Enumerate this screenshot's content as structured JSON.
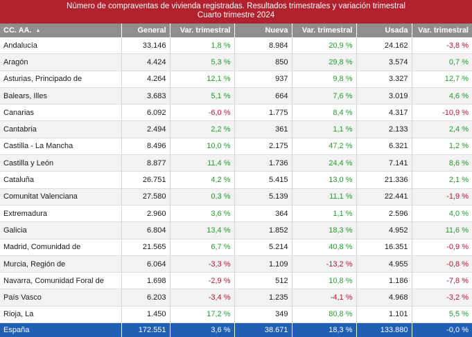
{
  "title": {
    "line1": "Número de compraventas de vivienda registradas. Resultados trimestrales  y variación trimestral",
    "line2": "Cuarto trimestre 2024"
  },
  "colors": {
    "header_bg": "#b2212e",
    "column_header_bg": "#8f8f8f",
    "total_bg": "#1f5fb4",
    "positive": "#1f9e2a",
    "negative": "#c0142a"
  },
  "columns": [
    "CC. AA.",
    "General",
    "Var. trimestral",
    "Nueva",
    "Var. trimestral",
    "Usada",
    "Var. trimestral"
  ],
  "sort_icon": "sort-ascending-icon",
  "rows": [
    [
      "Andalucía",
      "33.146",
      "1,8 %",
      "8.984",
      "20,9 %",
      "24.162",
      "-3,8 %"
    ],
    [
      "Aragón",
      "4.424",
      "5,3 %",
      "850",
      "29,8 %",
      "3.574",
      "0,7 %"
    ],
    [
      "Asturias, Principado de",
      "4.264",
      "12,1 %",
      "937",
      "9,8 %",
      "3.327",
      "12,7 %"
    ],
    [
      "Balears, Illes",
      "3.683",
      "5,1 %",
      "664",
      "7,6 %",
      "3.019",
      "4,6 %"
    ],
    [
      "Canarias",
      "6.092",
      "-6,0 %",
      "1.775",
      "8,4 %",
      "4.317",
      "-10,9 %"
    ],
    [
      "Cantabria",
      "2.494",
      "2,2 %",
      "361",
      "1,1 %",
      "2.133",
      "2,4 %"
    ],
    [
      "Castilla - La Mancha",
      "8.496",
      "10,0 %",
      "2.175",
      "47,2 %",
      "6.321",
      "1,2 %"
    ],
    [
      "Castilla y León",
      "8.877",
      "11,4 %",
      "1.736",
      "24,4 %",
      "7.141",
      "8,6 %"
    ],
    [
      "Cataluña",
      "26.751",
      "4,2 %",
      "5.415",
      "13,0 %",
      "21.336",
      "2,1 %"
    ],
    [
      "Comunitat Valenciana",
      "27.580",
      "0,3 %",
      "5.139",
      "11,1 %",
      "22.441",
      "-1,9 %"
    ],
    [
      "Extremadura",
      "2.960",
      "3,6 %",
      "364",
      "1,1 %",
      "2.596",
      "4,0 %"
    ],
    [
      "Galicia",
      "6.804",
      "13,4 %",
      "1.852",
      "18,3 %",
      "4.952",
      "11,6 %"
    ],
    [
      "Madrid, Comunidad de",
      "21.565",
      "6,7 %",
      "5.214",
      "40,8 %",
      "16.351",
      "-0,9 %"
    ],
    [
      "Murcia, Región de",
      "6.064",
      "-3,3 %",
      "1.109",
      "-13,2 %",
      "4.955",
      "-0,8 %"
    ],
    [
      "Navarra, Comunidad Foral de",
      "1.698",
      "-2,9 %",
      "512",
      "10,8 %",
      "1.186",
      "-7,8 %"
    ],
    [
      "País Vasco",
      "6.203",
      "-3,4 %",
      "1.235",
      "-4,1 %",
      "4.968",
      "-3,2 %"
    ],
    [
      "Rioja, La",
      "1.450",
      "17,2 %",
      "349",
      "80,8 %",
      "1.101",
      "5,5 %"
    ]
  ],
  "total": [
    "España",
    "172.551",
    "3,6 %",
    "38.671",
    "18,3 %",
    "133.880",
    "-0,0 %"
  ]
}
